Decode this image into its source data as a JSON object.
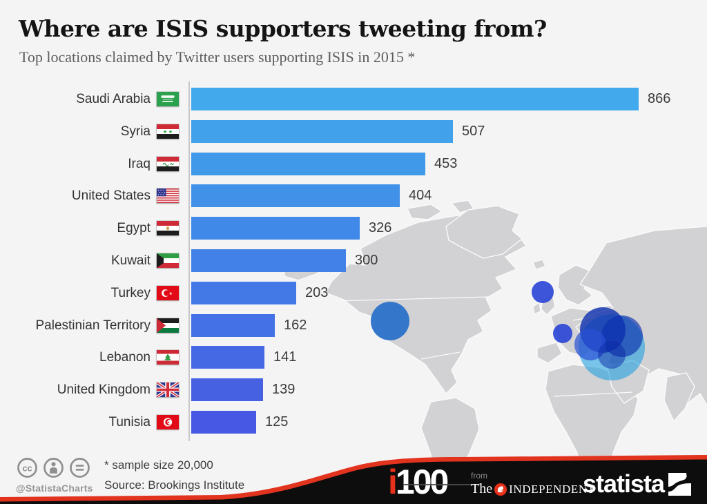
{
  "chart_data": {
    "type": "bar",
    "orientation": "horizontal",
    "title": "Where are ISIS supporters tweeting from?",
    "subtitle": "Top locations claimed by Twitter users supporting ISIS in 2015 *",
    "categories": [
      "Saudi Arabia",
      "Syria",
      "Iraq",
      "United States",
      "Egypt",
      "Kuwait",
      "Turkey",
      "Palestinian Territory",
      "Lebanon",
      "United Kingdom",
      "Tunisia"
    ],
    "values": [
      866,
      507,
      453,
      404,
      326,
      300,
      203,
      162,
      141,
      139,
      125
    ],
    "value_labels_shown": true,
    "xlim": [
      0,
      900
    ],
    "grid": false,
    "legend": false,
    "footnote": "* sample size 20,000",
    "source": "Source: Brookings Institute"
  },
  "header": {
    "title": "Where are ISIS supporters tweeting from?",
    "subtitle": "Top locations claimed by Twitter users supporting ISIS in 2015 *"
  },
  "chart": {
    "axis_color": "#c8c8ca",
    "rows": [
      {
        "label": "Saudi Arabia",
        "value": "866",
        "flag": "sa",
        "color": "#42a9ec"
      },
      {
        "label": "Syria",
        "value": "507",
        "flag": "sy",
        "color": "#41a1ea"
      },
      {
        "label": "Iraq",
        "value": "453",
        "flag": "iq",
        "color": "#4099e9"
      },
      {
        "label": "United States",
        "value": "404",
        "flag": "us",
        "color": "#4191e9"
      },
      {
        "label": "Egypt",
        "value": "326",
        "flag": "eg",
        "color": "#4189e8"
      },
      {
        "label": "Kuwait",
        "value": "300",
        "flag": "kw",
        "color": "#4281e7"
      },
      {
        "label": "Turkey",
        "value": "203",
        "flag": "tr",
        "color": "#4379e7"
      },
      {
        "label": "Palestinian Territory",
        "value": "162",
        "flag": "ps",
        "color": "#4471e6"
      },
      {
        "label": "Lebanon",
        "value": "141",
        "flag": "lb",
        "color": "#4569e4"
      },
      {
        "label": "United Kingdom",
        "value": "139",
        "flag": "gb",
        "color": "#4662e3"
      },
      {
        "label": "Tunisia",
        "value": "125",
        "flag": "tn",
        "color": "#4759e4"
      }
    ]
  },
  "map": {
    "land_color": "#d2d2d4",
    "border_color": "#fafafa",
    "bubbles": [
      {
        "x": 155,
        "y": 177,
        "r": 28,
        "color": "#2e74c9",
        "opacity": 0.97
      },
      {
        "x": 376,
        "y": 135,
        "r": 16,
        "color": "#2b46d6",
        "opacity": 0.92
      },
      {
        "x": 405,
        "y": 195,
        "r": 14,
        "color": "#2b46d6",
        "opacity": 0.92
      },
      {
        "x": 476,
        "y": 215,
        "r": 48,
        "color": "#129ade",
        "opacity": 0.55
      },
      {
        "x": 463,
        "y": 190,
        "r": 33,
        "color": "#0c2fae",
        "opacity": 0.8
      },
      {
        "x": 491,
        "y": 199,
        "r": 30,
        "color": "#0c2fae",
        "opacity": 0.65
      },
      {
        "x": 445,
        "y": 211,
        "r": 23,
        "color": "#2b50d4",
        "opacity": 0.7
      },
      {
        "x": 476,
        "y": 226,
        "r": 20,
        "color": "#0a2aa6",
        "opacity": 0.5
      }
    ]
  },
  "footer": {
    "handle": "@StatistaCharts",
    "footnote": "* sample size 20,000",
    "source": "Source: Brookings Institute",
    "i100_i": "i",
    "i100_num": "100",
    "from_label": "from",
    "the_label": "The",
    "independent_label": "INDEPENDENT",
    "statista_label": "statista",
    "swoosh_red": "#e2331f",
    "swoosh_black": "#0d0d0d"
  }
}
